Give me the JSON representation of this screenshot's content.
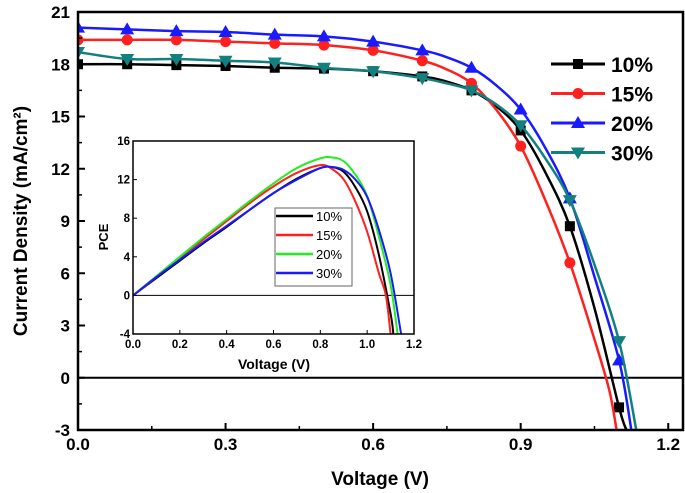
{
  "chart_data": [
    {
      "type": "line",
      "xlabel": "Voltage (V)",
      "ylabel": "Current Density (mA/cm²)",
      "xlim": [
        0,
        1.23
      ],
      "ylim": [
        -3,
        21
      ],
      "xticks": [
        "0.0",
        "0.3",
        "0.6",
        "0.9",
        "1.2"
      ],
      "yticks": [
        "-3",
        "0",
        "3",
        "6",
        "9",
        "12",
        "15",
        "18",
        "21"
      ],
      "legend": "right",
      "series": [
        {
          "name": "10%",
          "color": "#000000",
          "marker": "square",
          "x": [
            0,
            0.1,
            0.2,
            0.3,
            0.4,
            0.5,
            0.6,
            0.7,
            0.75,
            0.8,
            0.85,
            0.9,
            0.95,
            1.0,
            1.05,
            1.1,
            1.115
          ],
          "y": [
            18.0,
            18.0,
            17.95,
            17.9,
            17.8,
            17.75,
            17.6,
            17.3,
            17.0,
            16.5,
            15.6,
            14.2,
            11.8,
            8.7,
            4.0,
            -1.7,
            -3
          ]
        },
        {
          "name": "15%",
          "color": "#ff2020",
          "marker": "circle",
          "x": [
            0,
            0.1,
            0.2,
            0.3,
            0.4,
            0.5,
            0.6,
            0.7,
            0.75,
            0.8,
            0.85,
            0.9,
            0.95,
            1.0,
            1.05,
            1.08,
            1.095
          ],
          "y": [
            19.4,
            19.4,
            19.4,
            19.3,
            19.2,
            19.1,
            18.8,
            18.2,
            17.7,
            16.9,
            15.4,
            13.3,
            10.2,
            6.6,
            2.2,
            -0.7,
            -3
          ]
        },
        {
          "name": "20%",
          "color": "#1a1aff",
          "marker": "triangle-up",
          "x": [
            0,
            0.1,
            0.2,
            0.3,
            0.4,
            0.5,
            0.6,
            0.7,
            0.75,
            0.8,
            0.85,
            0.9,
            0.95,
            1.0,
            1.05,
            1.1,
            1.125
          ],
          "y": [
            20.1,
            20.0,
            19.9,
            19.85,
            19.7,
            19.6,
            19.3,
            18.8,
            18.4,
            17.8,
            16.8,
            15.4,
            13.2,
            10.3,
            5.8,
            1.0,
            -3
          ]
        },
        {
          "name": "30%",
          "color": "#138080",
          "marker": "triangle-down",
          "x": [
            0,
            0.1,
            0.2,
            0.3,
            0.4,
            0.5,
            0.6,
            0.7,
            0.75,
            0.8,
            0.85,
            0.9,
            0.95,
            1.0,
            1.05,
            1.1,
            1.135
          ],
          "y": [
            18.7,
            18.3,
            18.3,
            18.2,
            18.1,
            17.8,
            17.6,
            17.2,
            16.9,
            16.5,
            15.7,
            14.5,
            12.6,
            10.2,
            6.5,
            2.1,
            -3
          ]
        }
      ]
    },
    {
      "type": "line",
      "xlabel": "Voltage (V)",
      "ylabel": "PCE",
      "xlim": [
        0,
        1.2
      ],
      "ylim": [
        -4,
        16
      ],
      "xticks": [
        "0.0",
        "0.2",
        "0.4",
        "0.6",
        "0.8",
        "1.0",
        "1.2"
      ],
      "yticks": [
        "-4",
        "0",
        "4",
        "8",
        "12",
        "16"
      ],
      "legend": "center",
      "series": [
        {
          "name": "10%",
          "color": "#000000",
          "x": [
            0,
            0.1,
            0.2,
            0.3,
            0.4,
            0.5,
            0.6,
            0.7,
            0.8,
            0.85,
            0.9,
            0.95,
            1.0,
            1.05,
            1.1,
            1.112
          ],
          "y": [
            0,
            1.8,
            3.6,
            5.4,
            7.1,
            8.9,
            10.6,
            12.1,
            13.2,
            13.3,
            12.8,
            11.2,
            8.7,
            4.2,
            -1.9,
            -4
          ]
        },
        {
          "name": "15%",
          "color": "#ff2020",
          "x": [
            0,
            0.1,
            0.2,
            0.3,
            0.4,
            0.5,
            0.6,
            0.7,
            0.8,
            0.85,
            0.9,
            0.95,
            1.0,
            1.05,
            1.08,
            1.1
          ],
          "y": [
            0,
            1.9,
            3.9,
            5.8,
            7.7,
            9.6,
            11.3,
            12.7,
            13.5,
            13.1,
            12.0,
            9.7,
            6.6,
            2.3,
            0,
            -4
          ]
        },
        {
          "name": "20%",
          "color": "#22ee22",
          "x": [
            0,
            0.1,
            0.2,
            0.3,
            0.4,
            0.5,
            0.6,
            0.7,
            0.8,
            0.85,
            0.9,
            0.95,
            1.0,
            1.05,
            1.1,
            1.13
          ],
          "y": [
            0,
            2.0,
            4.0,
            6.0,
            7.9,
            9.8,
            11.6,
            13.2,
            14.2,
            14.3,
            13.9,
            12.5,
            10.3,
            6.1,
            1.1,
            -4
          ]
        },
        {
          "name": "30%",
          "color": "#1a1aff",
          "x": [
            0,
            0.1,
            0.2,
            0.3,
            0.4,
            0.5,
            0.6,
            0.7,
            0.8,
            0.85,
            0.9,
            0.95,
            1.0,
            1.05,
            1.1,
            1.145
          ],
          "y": [
            0,
            1.9,
            3.7,
            5.5,
            7.2,
            8.9,
            10.6,
            12.0,
            13.2,
            13.3,
            13.0,
            12.0,
            10.2,
            6.8,
            2.3,
            -4
          ]
        }
      ]
    }
  ]
}
